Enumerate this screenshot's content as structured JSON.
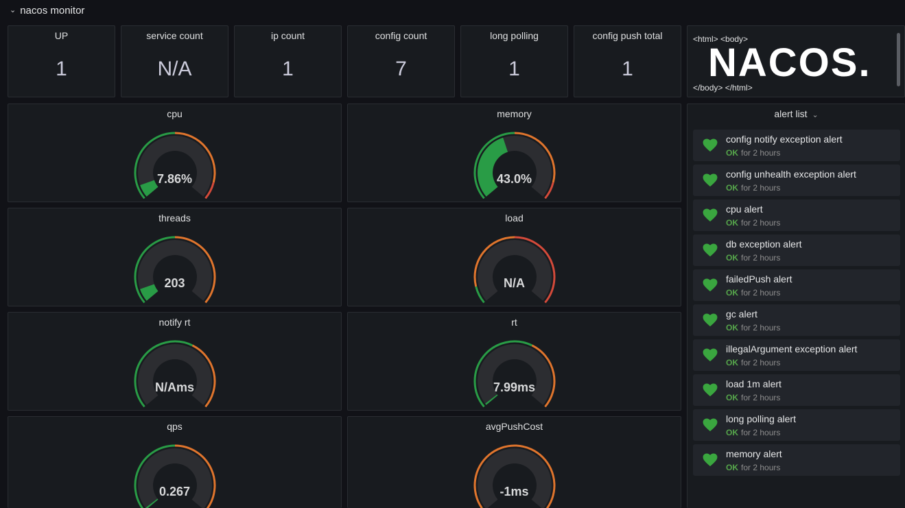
{
  "row": {
    "title": "nacos monitor",
    "chevron_icon": "chevron-down-icon"
  },
  "stats": [
    {
      "title": "UP",
      "value": "1"
    },
    {
      "title": "service count",
      "value": "N/A"
    },
    {
      "title": "ip count",
      "value": "1"
    },
    {
      "title": "config count",
      "value": "7"
    },
    {
      "title": "long polling",
      "value": "1"
    },
    {
      "title": "config push total",
      "value": "1"
    }
  ],
  "html_panel": {
    "open_tags": "<html> <body>",
    "logo": "NACOS.",
    "close_tags": "</body> </html>"
  },
  "gauges": [
    {
      "title": "cpu",
      "value": "7.86%",
      "level": 0.0786,
      "thresholds": [
        0.5,
        0.9
      ]
    },
    {
      "title": "memory",
      "value": "43.0%",
      "level": 0.43,
      "thresholds": [
        0.5,
        0.9
      ]
    },
    {
      "title": "threads",
      "value": "203",
      "level": 0.08,
      "thresholds": [
        0.5,
        1.0
      ]
    },
    {
      "title": "load",
      "value": "N/A",
      "level": 0,
      "thresholds": [
        0.1,
        0.5
      ]
    },
    {
      "title": "notify rt",
      "value": "N/Ams",
      "level": 0,
      "thresholds": [
        0.6,
        1.0
      ]
    },
    {
      "title": "rt",
      "value": "7.99ms",
      "level": 0.01,
      "thresholds": [
        0.6,
        1.0
      ]
    },
    {
      "title": "qps",
      "value": "0.267",
      "level": 0.01,
      "thresholds": [
        0.5,
        1.0
      ]
    },
    {
      "title": "avgPushCost",
      "value": "-1ms",
      "level": 0,
      "thresholds": [
        0.02,
        1.0
      ]
    }
  ],
  "colors": {
    "green": "#37872d",
    "green_fill": "#299c46",
    "orange": "#e0752d",
    "red": "#d44a3a",
    "track": "#2c2d31",
    "ok": "#56a64b"
  },
  "alert_list": {
    "title": "alert list",
    "title_icon": "chevron-down-icon",
    "items": [
      {
        "name": "config notify exception alert",
        "state": "OK",
        "duration": "for 2 hours",
        "icon": "heart-icon"
      },
      {
        "name": "config unhealth exception alert",
        "state": "OK",
        "duration": "for 2 hours",
        "icon": "heart-icon"
      },
      {
        "name": "cpu alert",
        "state": "OK",
        "duration": "for 2 hours",
        "icon": "heart-icon"
      },
      {
        "name": "db exception alert",
        "state": "OK",
        "duration": "for 2 hours",
        "icon": "heart-icon"
      },
      {
        "name": "failedPush alert",
        "state": "OK",
        "duration": "for 2 hours",
        "icon": "heart-icon"
      },
      {
        "name": "gc alert",
        "state": "OK",
        "duration": "for 2 hours",
        "icon": "heart-icon"
      },
      {
        "name": "illegalArgument exception alert",
        "state": "OK",
        "duration": "for 2 hours",
        "icon": "heart-icon"
      },
      {
        "name": "load 1m alert",
        "state": "OK",
        "duration": "for 2 hours",
        "icon": "heart-icon"
      },
      {
        "name": "long polling alert",
        "state": "OK",
        "duration": "for 2 hours",
        "icon": "heart-icon"
      },
      {
        "name": "memory alert",
        "state": "OK",
        "duration": "for 2 hours",
        "icon": "heart-icon"
      }
    ]
  }
}
